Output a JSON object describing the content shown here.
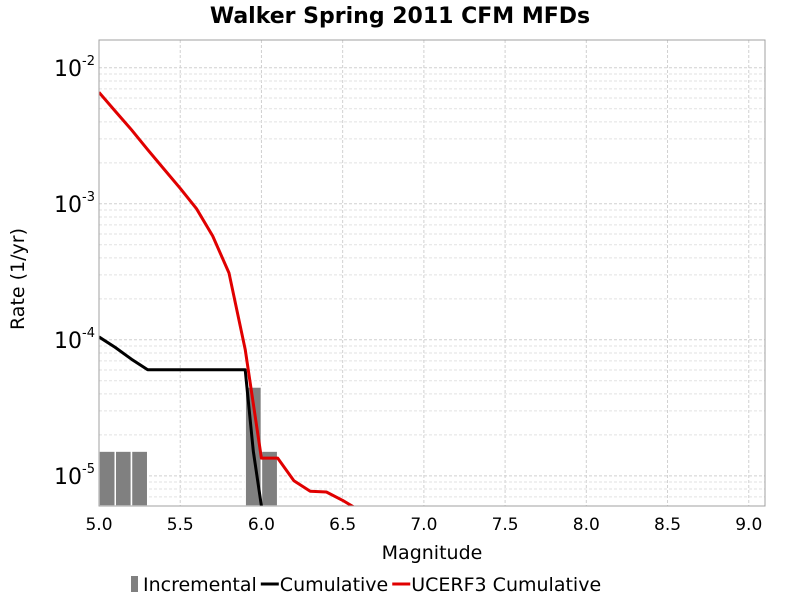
{
  "chart_data": {
    "type": "line",
    "title": "Walker Spring 2011 CFM MFDs",
    "xlabel": "Magnitude",
    "ylabel": "Rate (1/yr)",
    "xlim": [
      5.0,
      9.1
    ],
    "ylim": [
      6e-06,
      0.016
    ],
    "y_scale": "log",
    "grid": true,
    "legend_position": "bottom",
    "x_ticks": [
      "5.0",
      "5.5",
      "6.0",
      "6.5",
      "7.0",
      "7.5",
      "8.0",
      "8.5",
      "9.0"
    ],
    "y_ticks": [
      {
        "base": "10",
        "exp": "-5",
        "value": 1e-05
      },
      {
        "base": "10",
        "exp": "-4",
        "value": 0.0001
      },
      {
        "base": "10",
        "exp": "-3",
        "value": 0.001
      },
      {
        "base": "10",
        "exp": "-2",
        "value": 0.01
      }
    ],
    "series": [
      {
        "name": "Incremental",
        "kind": "bar",
        "color": "#808080",
        "bin_width": 0.1,
        "points": [
          {
            "x": 5.05,
            "y": 1.52e-05
          },
          {
            "x": 5.15,
            "y": 1.52e-05
          },
          {
            "x": 5.25,
            "y": 1.52e-05
          },
          {
            "x": 5.95,
            "y": 4.5e-05
          },
          {
            "x": 6.05,
            "y": 1.52e-05
          }
        ]
      },
      {
        "name": "Cumulative",
        "kind": "line",
        "color": "#000000",
        "points": [
          {
            "x": 5.0,
            "y": 0.000105
          },
          {
            "x": 5.1,
            "y": 8.8e-05
          },
          {
            "x": 5.2,
            "y": 7.2e-05
          },
          {
            "x": 5.3,
            "y": 6.02e-05
          },
          {
            "x": 5.4,
            "y": 6.02e-05
          },
          {
            "x": 5.5,
            "y": 6.02e-05
          },
          {
            "x": 5.6,
            "y": 6.02e-05
          },
          {
            "x": 5.7,
            "y": 6.02e-05
          },
          {
            "x": 5.8,
            "y": 6.02e-05
          },
          {
            "x": 5.9,
            "y": 6.02e-05
          },
          {
            "x": 5.95,
            "y": 1.52e-05
          },
          {
            "x": 6.0,
            "y": 6e-06
          }
        ]
      },
      {
        "name": "UCERF3 Cumulative",
        "kind": "line",
        "color": "#e00000",
        "points": [
          {
            "x": 5.0,
            "y": 0.0066
          },
          {
            "x": 5.1,
            "y": 0.0048
          },
          {
            "x": 5.2,
            "y": 0.0035
          },
          {
            "x": 5.3,
            "y": 0.0025
          },
          {
            "x": 5.4,
            "y": 0.0018
          },
          {
            "x": 5.5,
            "y": 0.0013
          },
          {
            "x": 5.6,
            "y": 0.00092
          },
          {
            "x": 5.7,
            "y": 0.00058
          },
          {
            "x": 5.8,
            "y": 0.00031
          },
          {
            "x": 5.9,
            "y": 8.5e-05
          },
          {
            "x": 6.0,
            "y": 1.35e-05
          },
          {
            "x": 6.1,
            "y": 1.35e-05
          },
          {
            "x": 6.2,
            "y": 9.2e-06
          },
          {
            "x": 6.3,
            "y": 7.7e-06
          },
          {
            "x": 6.4,
            "y": 7.6e-06
          },
          {
            "x": 6.5,
            "y": 6.6e-06
          },
          {
            "x": 6.6,
            "y": 5.6e-06
          }
        ]
      }
    ]
  }
}
